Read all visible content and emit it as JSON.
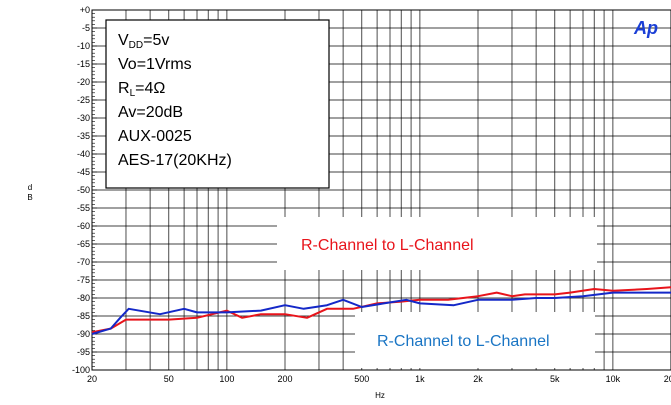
{
  "chart_data": {
    "type": "line",
    "xscale": "log",
    "xlim": [
      20,
      20000
    ],
    "ylim": [
      -100,
      0
    ],
    "grid": true,
    "xlabel": "Hz",
    "ylabel": "d B",
    "x_ticks": [
      {
        "value": 20,
        "label": "20"
      },
      {
        "value": 50,
        "label": "50"
      },
      {
        "value": 100,
        "label": "100"
      },
      {
        "value": 200,
        "label": "200"
      },
      {
        "value": 500,
        "label": "500"
      },
      {
        "value": 1000,
        "label": "1k"
      },
      {
        "value": 2000,
        "label": "2k"
      },
      {
        "value": 5000,
        "label": "5k"
      },
      {
        "value": 10000,
        "label": "10k"
      },
      {
        "value": 20000,
        "label": "20k"
      }
    ],
    "y_ticks": [
      {
        "value": 0,
        "label": "+0"
      },
      {
        "value": -5,
        "label": "-5"
      },
      {
        "value": -10,
        "label": "-10"
      },
      {
        "value": -15,
        "label": "-15"
      },
      {
        "value": -20,
        "label": "-20"
      },
      {
        "value": -25,
        "label": "-25"
      },
      {
        "value": -30,
        "label": "-30"
      },
      {
        "value": -35,
        "label": "-35"
      },
      {
        "value": -40,
        "label": "-40"
      },
      {
        "value": -45,
        "label": "-45"
      },
      {
        "value": -50,
        "label": "-50"
      },
      {
        "value": -55,
        "label": "-55"
      },
      {
        "value": -60,
        "label": "-60"
      },
      {
        "value": -65,
        "label": "-65"
      },
      {
        "value": -70,
        "label": "-70"
      },
      {
        "value": -75,
        "label": "-75"
      },
      {
        "value": -80,
        "label": "-80"
      },
      {
        "value": -85,
        "label": "-85"
      },
      {
        "value": -90,
        "label": "-90"
      },
      {
        "value": -95,
        "label": "-95"
      },
      {
        "value": -100,
        "label": "-100"
      }
    ],
    "info_box": [
      "V_DD=5v",
      "Vo=1Vrms",
      "R_L=4Ω",
      "Av=20dB",
      "AUX-0025",
      "AES-17(20KHz)"
    ],
    "brand": "Ap",
    "annotations": [
      {
        "text": "R-Channel to L-Channel",
        "color": "red"
      },
      {
        "text": "R-Channel to L-Channel",
        "color": "blue"
      }
    ],
    "series": [
      {
        "color": "#e8141b",
        "points": [
          {
            "x": 20,
            "y": -89.5
          },
          {
            "x": 25,
            "y": -88.5
          },
          {
            "x": 30,
            "y": -86
          },
          {
            "x": 50,
            "y": -86
          },
          {
            "x": 70,
            "y": -85.5
          },
          {
            "x": 100,
            "y": -83.5
          },
          {
            "x": 120,
            "y": -85.5
          },
          {
            "x": 150,
            "y": -84.5
          },
          {
            "x": 200,
            "y": -84.5
          },
          {
            "x": 260,
            "y": -85.5
          },
          {
            "x": 330,
            "y": -83
          },
          {
            "x": 450,
            "y": -83
          },
          {
            "x": 600,
            "y": -81.5
          },
          {
            "x": 800,
            "y": -81
          },
          {
            "x": 1000,
            "y": -80.5
          },
          {
            "x": 1400,
            "y": -80.5
          },
          {
            "x": 2000,
            "y": -79.5
          },
          {
            "x": 2500,
            "y": -78.5
          },
          {
            "x": 3000,
            "y": -79.5
          },
          {
            "x": 3500,
            "y": -79
          },
          {
            "x": 5000,
            "y": -79
          },
          {
            "x": 6000,
            "y": -78.5
          },
          {
            "x": 8000,
            "y": -77.5
          },
          {
            "x": 10000,
            "y": -78
          },
          {
            "x": 15000,
            "y": -77.5
          },
          {
            "x": 20000,
            "y": -77
          }
        ]
      },
      {
        "color": "#1428c8",
        "points": [
          {
            "x": 20,
            "y": -90
          },
          {
            "x": 25,
            "y": -88.5
          },
          {
            "x": 28,
            "y": -85.5
          },
          {
            "x": 31,
            "y": -83
          },
          {
            "x": 45,
            "y": -84.5
          },
          {
            "x": 60,
            "y": -83
          },
          {
            "x": 70,
            "y": -84
          },
          {
            "x": 100,
            "y": -84
          },
          {
            "x": 150,
            "y": -83.5
          },
          {
            "x": 200,
            "y": -82
          },
          {
            "x": 250,
            "y": -83
          },
          {
            "x": 330,
            "y": -82
          },
          {
            "x": 400,
            "y": -80.5
          },
          {
            "x": 500,
            "y": -82.5
          },
          {
            "x": 650,
            "y": -81.5
          },
          {
            "x": 850,
            "y": -80.5
          },
          {
            "x": 1000,
            "y": -81.5
          },
          {
            "x": 1500,
            "y": -82
          },
          {
            "x": 2000,
            "y": -80.5
          },
          {
            "x": 3000,
            "y": -80.5
          },
          {
            "x": 4000,
            "y": -80
          },
          {
            "x": 5000,
            "y": -80
          },
          {
            "x": 7000,
            "y": -79.5
          },
          {
            "x": 10000,
            "y": -78.5
          },
          {
            "x": 15000,
            "y": -78.5
          },
          {
            "x": 20000,
            "y": -78.5
          }
        ]
      }
    ]
  }
}
